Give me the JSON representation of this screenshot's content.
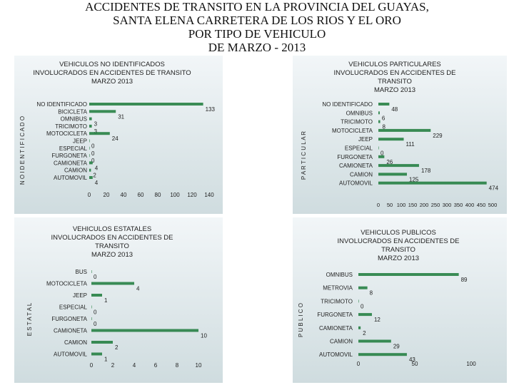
{
  "title_lines": [
    "ACCIDENTES DE TRANSITO EN LA PROVINCIA DEL GUAYAS,",
    "SANTA ELENA CARRETERA DE LOS RIOS Y EL ORO",
    "POR  TIPO DE VEHICULO",
    "DE MARZO - 2013"
  ],
  "colors": {
    "panel_top": "#f2f6f8",
    "panel_bottom": "#cfdcdf",
    "bar": "#1b7a3a",
    "text": "#222222"
  },
  "chart_data": [
    {
      "type": "bar",
      "orientation": "horizontal",
      "title_lines": [
        "VEHICULOS NO IDENTIFICADOS",
        "INVOLUCRADOS EN ACCIDENTES DE TRANSITO",
        "MARZO 2013"
      ],
      "ylabel": "N O  I D E N T I F I C A D O",
      "categories": [
        "NO IDENTIFICADO",
        "BICICLETA",
        "OMNIBUS",
        "TRICIMOTO",
        "MOTOCICLETA",
        "JEEP",
        "ESPECIAL",
        "FURGONETA",
        "CAMIONETA",
        "CAMION",
        "AUTOMOVIL"
      ],
      "values": [
        133,
        31,
        3,
        3,
        24,
        0,
        0,
        0,
        4,
        2,
        4
      ],
      "value_labels": [
        "133",
        "31",
        "3",
        "3",
        "24",
        "0",
        "0",
        "0",
        "4",
        "2",
        "4"
      ],
      "xticks": [
        "0",
        "20",
        "40",
        "60",
        "80",
        "100",
        "120",
        "140"
      ],
      "xlim": [
        0,
        140
      ]
    },
    {
      "type": "bar",
      "orientation": "horizontal",
      "title_lines": [
        "VEHICULOS PARTICULARES",
        "INVOLUCRADOS EN ACCIDENTES DE",
        "TRANSITO",
        "MARZO 2013"
      ],
      "ylabel": "P A R T I C U L A R",
      "categories": [
        "NO IDENTIFICADO",
        "OMNIBUS",
        "TRICIMOTO",
        "MOTOCICLETA",
        "JEEP",
        "ESPECIAL",
        "FURGONETA",
        "CAMIONETA",
        "CAMION",
        "AUTOMOVIL"
      ],
      "values": [
        48,
        6,
        8,
        229,
        111,
        0,
        26,
        178,
        125,
        474
      ],
      "value_labels": [
        "48",
        "6",
        "8",
        "229",
        "111",
        "0",
        "26",
        "178",
        "125",
        "474"
      ],
      "xticks": [
        "0",
        "50",
        "100",
        "150",
        "200",
        "250",
        "300",
        "350",
        "400",
        "450",
        "500"
      ],
      "xlim": [
        0,
        500
      ]
    },
    {
      "type": "bar",
      "orientation": "horizontal",
      "title_lines": [
        "VEHICULOS ESTATALES",
        "INVOLUCRADOS EN ACCIDENTES DE",
        "TRANSITO",
        "MARZO 2013"
      ],
      "ylabel": "E S T A T A L",
      "categories": [
        "BUS",
        "MOTOCICLETA",
        "JEEP",
        "ESPECIAL",
        "FURGONETA",
        "CAMIONETA",
        "CAMION",
        "AUTOMOVIL"
      ],
      "values": [
        0,
        4,
        1,
        0,
        0,
        10,
        2,
        1
      ],
      "value_labels": [
        "0",
        "4",
        "1",
        "0",
        "0",
        "10",
        "2",
        "1"
      ],
      "xticks": [
        "0",
        "2",
        "4",
        "6",
        "8",
        "10"
      ],
      "xlim": [
        0,
        10
      ]
    },
    {
      "type": "bar",
      "orientation": "horizontal",
      "title_lines": [
        "VEHICULOS PUBLICOS",
        "INVOLUCRADOS EN ACCIDENTES DE",
        "TRANSITO",
        "MARZO 2013"
      ],
      "ylabel": "P U B L I C O",
      "categories": [
        "OMNIBUS",
        "METROVIA",
        "TRICIMOTO",
        "FURGONETA",
        "CAMIONETA",
        "CAMION",
        "AUTOMOVIL"
      ],
      "values": [
        89,
        8,
        0,
        12,
        2,
        29,
        43
      ],
      "value_labels": [
        "89",
        "8",
        "0",
        "12",
        "2",
        "29",
        "43"
      ],
      "xticks": [
        "0",
        "50",
        "100"
      ],
      "xlim": [
        0,
        100
      ]
    }
  ]
}
